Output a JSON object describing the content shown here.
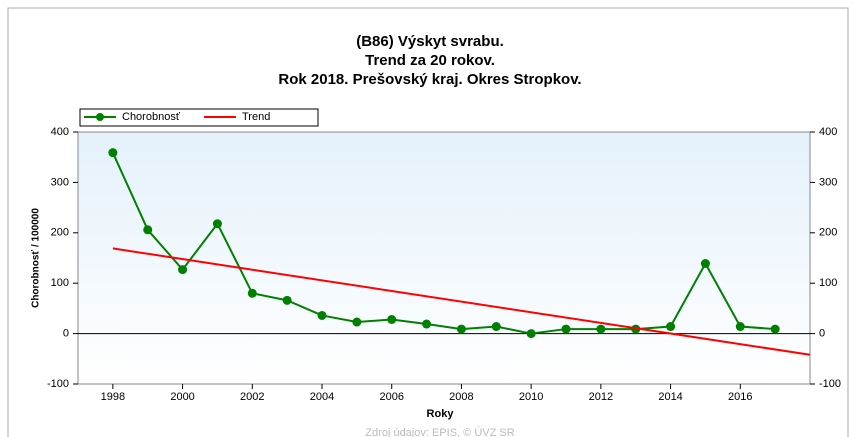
{
  "chart_data": {
    "type": "line",
    "title": [
      "(B86) Výskyt svrabu.",
      "Trend za 20 rokov.",
      "Rok 2018. Prešovský kraj. Okres Stropkov."
    ],
    "xlabel": "Roky",
    "ylabel": "Chorobnosť / 100000",
    "footer": "Zdroj údajov: EPIS, © ÚVZ SR",
    "x": [
      1998,
      1999,
      2000,
      2001,
      2002,
      2003,
      2004,
      2005,
      2006,
      2007,
      2008,
      2009,
      2010,
      2011,
      2012,
      2013,
      2014,
      2015,
      2016,
      2017
    ],
    "series": [
      {
        "name": "Chorobnosť",
        "color": "#008000",
        "values": [
          359,
          206,
          127,
          218,
          80,
          66,
          36,
          23,
          28,
          19,
          9,
          14,
          0,
          9,
          9,
          9,
          14,
          139,
          14,
          9
        ]
      },
      {
        "name": "Trend",
        "color": "#ff0000",
        "x": [
          1998,
          2018
        ],
        "values": [
          169,
          -42
        ]
      }
    ],
    "xlim": [
      1997,
      2018
    ],
    "xticks": [
      1998,
      2000,
      2002,
      2004,
      2006,
      2008,
      2010,
      2012,
      2014,
      2016
    ],
    "ylim": [
      -100,
      400
    ],
    "yticks": [
      -100,
      0,
      100,
      200,
      300,
      400
    ],
    "y2lim": [
      -100,
      400
    ],
    "y2ticks": [
      -100,
      0,
      100,
      200,
      300,
      400
    ],
    "legend": "top-left"
  }
}
